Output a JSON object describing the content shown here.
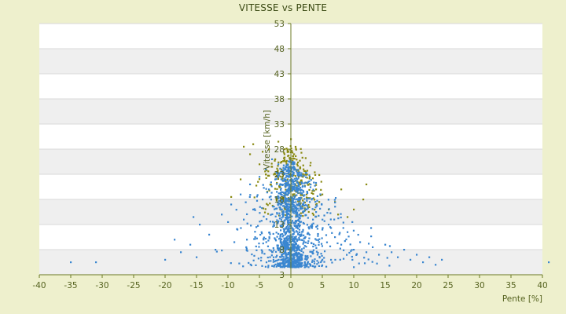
{
  "chart_data": {
    "type": "scatter",
    "title": "VITESSE vs PENTE",
    "xlabel": "Pente [%]",
    "ylabel": "Vitesse [km/h]",
    "xlim": [
      -40,
      40
    ],
    "ylim": [
      3,
      53
    ],
    "x_ticks": [
      "-40",
      "-35",
      "-30",
      "-25",
      "-20",
      "-15",
      "-10",
      "-5",
      "0",
      "5",
      "10",
      "15",
      "20",
      "25",
      "30",
      "35",
      "40"
    ],
    "y_ticks": [
      "3",
      "8",
      "13",
      "18",
      "23",
      "28",
      "33",
      "38",
      "43",
      "48",
      "53"
    ],
    "grid": true,
    "banded_background": true,
    "legend": "none",
    "colors": {
      "series_blue": "#3a86d0",
      "series_olive": "#8a8a12",
      "plot_band": "#efefef",
      "background": "#eef0cd",
      "text": "#55621f"
    },
    "series": [
      {
        "color": "#3a86d0",
        "points": [
          [
            -35,
            5.5
          ],
          [
            -31,
            5.5
          ],
          [
            -20,
            6
          ],
          [
            -18.5,
            10
          ],
          [
            -17.5,
            7.5
          ],
          [
            -16,
            9
          ],
          [
            -15,
            6.5
          ],
          [
            -15.5,
            14.5
          ],
          [
            -14.5,
            13
          ],
          [
            -13,
            11
          ],
          [
            -12,
            8
          ],
          [
            -11,
            15
          ],
          [
            -10,
            13.5
          ],
          [
            -9.5,
            17
          ],
          [
            -9,
            9.5
          ],
          [
            -8.5,
            12
          ],
          [
            -8,
            19
          ],
          [
            -7.5,
            14
          ],
          [
            -7,
            10
          ],
          [
            -6.5,
            21
          ],
          [
            -6,
            16
          ],
          [
            -5.5,
            12.5
          ],
          [
            -5,
            22.5
          ],
          [
            -4.5,
            18
          ],
          [
            -4,
            24
          ],
          [
            -3.5,
            20
          ],
          [
            -3,
            26
          ],
          [
            -2.5,
            22
          ],
          [
            -2,
            25
          ],
          [
            -1.5,
            19
          ],
          [
            -1,
            23
          ],
          [
            -0.5,
            21
          ],
          [
            0,
            24.5
          ],
          [
            0.5,
            20
          ],
          [
            1,
            22
          ],
          [
            1.5,
            18
          ],
          [
            2,
            19.5
          ],
          [
            2.5,
            16
          ],
          [
            3,
            17.5
          ],
          [
            3.5,
            14
          ],
          [
            4,
            15.5
          ],
          [
            5,
            12
          ],
          [
            6,
            13
          ],
          [
            7,
            10.5
          ],
          [
            8,
            9
          ],
          [
            9,
            11.5
          ],
          [
            10,
            8
          ],
          [
            11,
            9.5
          ],
          [
            12,
            7.5
          ],
          [
            13,
            8.5
          ],
          [
            14,
            7
          ],
          [
            15,
            9
          ],
          [
            16,
            7.5
          ],
          [
            17,
            6.5
          ],
          [
            18,
            8
          ],
          [
            19,
            6
          ],
          [
            20,
            7
          ],
          [
            21,
            5.5
          ],
          [
            22,
            6.5
          ],
          [
            23,
            5
          ],
          [
            24,
            6
          ],
          [
            41,
            5.5
          ]
        ],
        "cluster": {
          "description": "dense cloud centred near x=0",
          "n": 1400
        }
      },
      {
        "color": "#8a8a12",
        "points": [
          [
            -7.5,
            28.5
          ],
          [
            -6.5,
            27
          ],
          [
            -6,
            29
          ],
          [
            -5,
            25
          ],
          [
            -4.5,
            27.5
          ],
          [
            -4,
            23
          ],
          [
            -3.5,
            28
          ],
          [
            -3,
            24.5
          ],
          [
            -2.5,
            26
          ],
          [
            -2,
            29.5
          ],
          [
            -1.5,
            25.5
          ],
          [
            -1,
            28
          ],
          [
            -0.5,
            22
          ],
          [
            0,
            30
          ],
          [
            0.5,
            27
          ],
          [
            1,
            25
          ],
          [
            1.5,
            21
          ],
          [
            2,
            24
          ],
          [
            2.5,
            19
          ],
          [
            3,
            22.5
          ],
          [
            4,
            20
          ],
          [
            4.5,
            17.5
          ],
          [
            5,
            19
          ],
          [
            6,
            16
          ],
          [
            7,
            17.5
          ],
          [
            7.5,
            15
          ],
          [
            8,
            20
          ],
          [
            9,
            14.5
          ],
          [
            10,
            16
          ],
          [
            11.5,
            18
          ],
          [
            12,
            21
          ],
          [
            -9.5,
            18.5
          ],
          [
            -8,
            22
          ]
        ],
        "cluster": {
          "description": "sparser upper cloud near x=0",
          "n": 260
        }
      }
    ]
  }
}
